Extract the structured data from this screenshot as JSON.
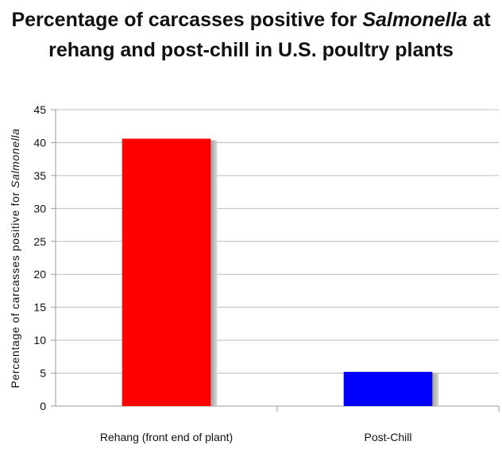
{
  "chart_data": {
    "type": "bar",
    "title": {
      "part1": "Percentage of carcasses positive for ",
      "part2_italic": "Salmonella",
      "part3": " at",
      "line2": "rehang and post-chill in U.S. poultry plants"
    },
    "ylabel": {
      "prefix": "Percentage of carcasses positive for ",
      "italic": "Salmonella"
    },
    "xlabel": "",
    "categories": [
      "Rehang (front end of plant)",
      "Post-Chill"
    ],
    "values": [
      40.6,
      5.2
    ],
    "bar_colors": [
      "#ff0000",
      "#0000ff"
    ],
    "ylim": [
      0,
      45
    ],
    "yticks": [
      0,
      5,
      10,
      15,
      20,
      25,
      30,
      35,
      40,
      45
    ],
    "grid": true,
    "legend": "none"
  }
}
